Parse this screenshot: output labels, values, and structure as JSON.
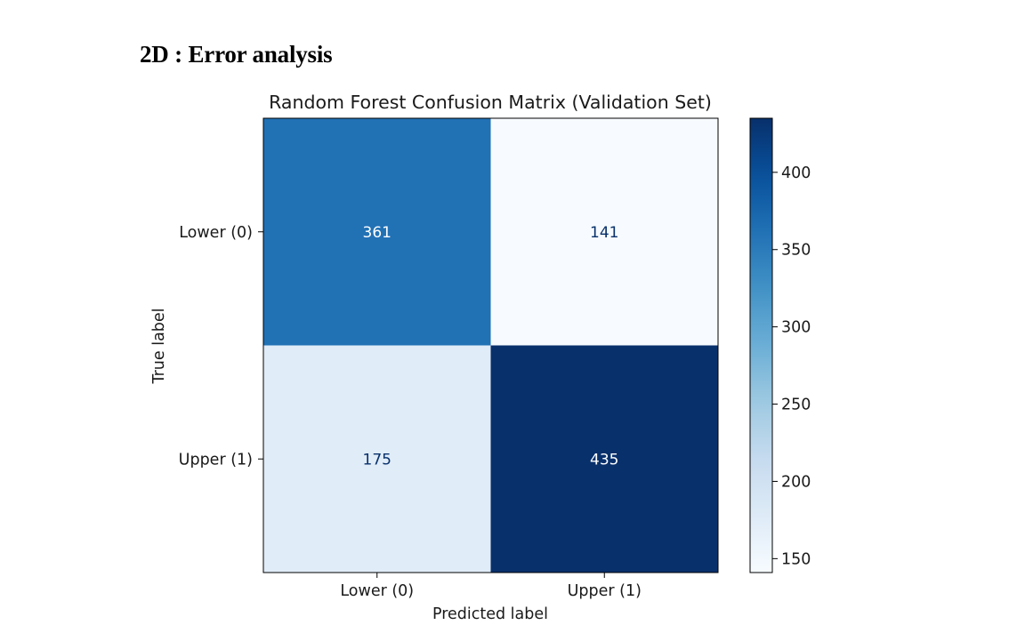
{
  "page": {
    "heading": "2D : Error analysis"
  },
  "chart_data": {
    "type": "heatmap",
    "title": "Random Forest Confusion Matrix (Validation Set)",
    "xlabel": "Predicted label",
    "ylabel": "True label",
    "x_categories": [
      "Lower (0)",
      "Upper (1)"
    ],
    "y_categories": [
      "Lower (0)",
      "Upper (1)"
    ],
    "matrix": [
      [
        361,
        141
      ],
      [
        175,
        435
      ]
    ],
    "colormap": "Blues",
    "color_range": [
      141,
      435
    ],
    "colorbar_ticks": [
      150,
      200,
      250,
      300,
      350,
      400
    ],
    "colors": {
      "light_text": "#ffffff",
      "dark_text": "#08306b",
      "axis": "#000000"
    }
  }
}
